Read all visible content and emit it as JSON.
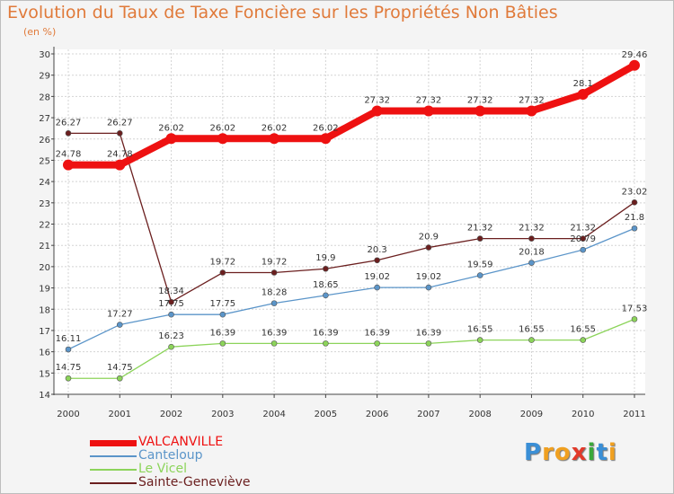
{
  "chart_data": {
    "type": "line",
    "title": "Evolution du Taux de Taxe Foncière sur les Propriétés Non Bâties",
    "ylabel": "(en %)",
    "xlabel": "",
    "categories": [
      "2000",
      "2001",
      "2002",
      "2003",
      "2004",
      "2005",
      "2006",
      "2007",
      "2008",
      "2009",
      "2010",
      "2011"
    ],
    "ylim": [
      14,
      30
    ],
    "yticks": [
      14,
      15,
      16,
      17,
      18,
      19,
      20,
      21,
      22,
      23,
      24,
      25,
      26,
      27,
      28,
      29,
      30
    ],
    "grid": true,
    "legend_position": "bottom-left",
    "series": [
      {
        "name": "VALCANVILLE",
        "color": "#ee1111",
        "values": [
          24.78,
          24.78,
          26.02,
          26.02,
          26.02,
          26.02,
          27.32,
          27.32,
          27.32,
          27.32,
          28.1,
          29.46
        ],
        "labels": [
          "24.78",
          "24.78",
          "26.02",
          "26.02",
          "26.02",
          "26.02",
          "27.32",
          "27.32",
          "27.32",
          "27.32",
          "28.1",
          "29.46"
        ]
      },
      {
        "name": "Canteloup",
        "color": "#5b95c9",
        "values": [
          16.11,
          17.27,
          17.75,
          17.75,
          18.28,
          18.65,
          19.02,
          19.02,
          19.59,
          20.18,
          20.79,
          21.8
        ],
        "labels": [
          "16.11",
          "17.27",
          "17.75",
          "17.75",
          "18.28",
          "18.65",
          "19.02",
          "19.02",
          "19.59",
          "20.18",
          "20.79",
          "21.8"
        ]
      },
      {
        "name": "Le Vicel",
        "color": "#8cd45a",
        "values": [
          14.75,
          14.75,
          16.23,
          16.39,
          16.39,
          16.39,
          16.39,
          16.39,
          16.55,
          16.55,
          16.55,
          17.53
        ],
        "labels": [
          "14.75",
          "14.75",
          "16.23",
          "16.39",
          "16.39",
          "16.39",
          "16.39",
          "16.39",
          "16.55",
          "16.55",
          "16.55",
          "17.53"
        ]
      },
      {
        "name": "Sainte-Geneviève",
        "color": "#6b1f1f",
        "values": [
          26.27,
          26.27,
          18.34,
          19.72,
          19.72,
          19.9,
          20.3,
          20.9,
          21.32,
          21.32,
          21.32,
          23.02
        ],
        "labels": [
          "26.27",
          "26.27",
          "18.34",
          "19.72",
          "19.72",
          "19.9",
          "20.3",
          "20.9",
          "21.32",
          "21.32",
          "21.32",
          "23.02"
        ]
      }
    ]
  },
  "logo": {
    "letters": [
      "P",
      "r",
      "o",
      "x",
      "i",
      "t",
      "i"
    ],
    "colors": [
      "#3a8fd6",
      "#f0a020",
      "#f0a020",
      "#e23a2a",
      "#3aa83a",
      "#3a8fd6",
      "#f0a020"
    ]
  }
}
